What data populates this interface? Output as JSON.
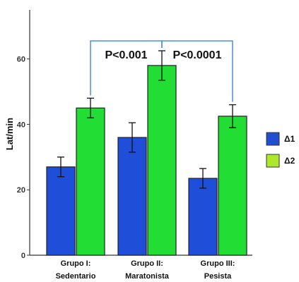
{
  "chart_data": {
    "type": "bar",
    "ylabel": "Lat/min",
    "ylim": [
      0,
      75
    ],
    "yticks": [
      0,
      20,
      40,
      60
    ],
    "categories": [
      {
        "line1": "Grupo  I:",
        "line2": "Sedentario"
      },
      {
        "line1": "Grupo  II:",
        "line2": "Maratonista"
      },
      {
        "line1": "Grupo  III:",
        "line2": "Pesista"
      }
    ],
    "series": [
      {
        "name": "Δ1",
        "color": "#1f4fd8",
        "values": [
          27,
          36,
          23.5
        ],
        "errors": [
          3,
          4.5,
          3
        ]
      },
      {
        "name": "Δ2",
        "color": "#22dd33",
        "values": [
          45,
          58,
          42.5
        ],
        "errors": [
          3,
          4.5,
          3.5
        ]
      }
    ],
    "annotations": [
      {
        "text": "P<0.001",
        "from_group": 0,
        "to_group": 1
      },
      {
        "text": "P<0.0001",
        "from_group": 1,
        "to_group": 2
      }
    ],
    "legend_position": "right",
    "bracket_color": "#4a90d9",
    "legend_colors": [
      "#2050d0",
      "#aee82a"
    ]
  }
}
